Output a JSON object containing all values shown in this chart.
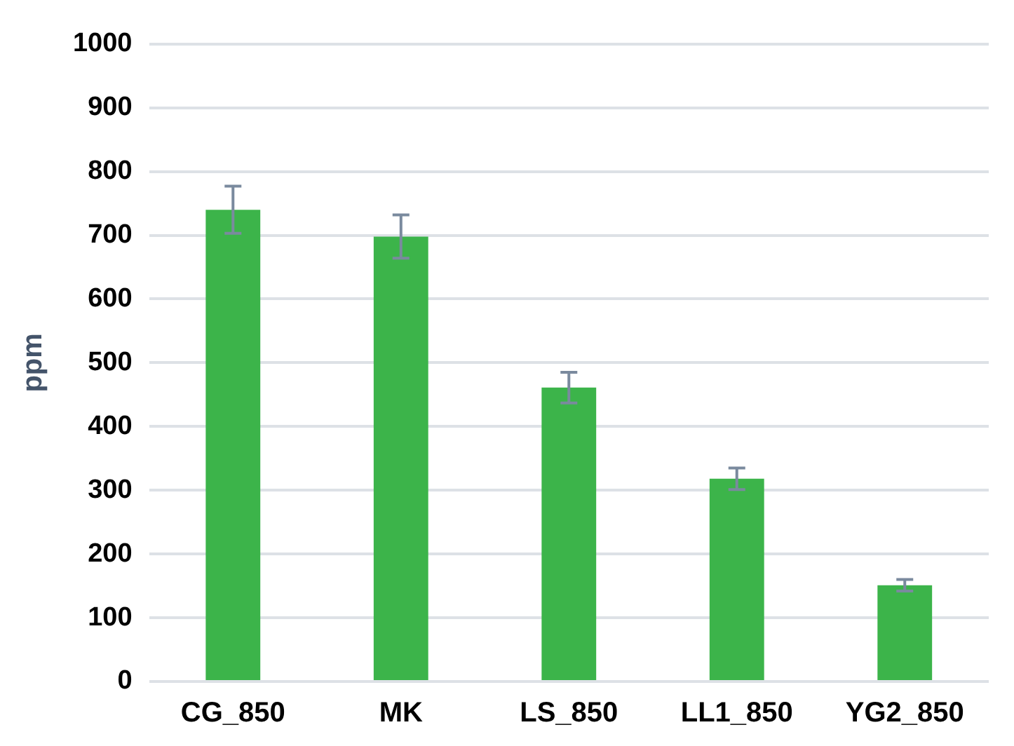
{
  "chart_data": {
    "type": "bar",
    "ylabel": "ppm",
    "categories": [
      "CG_850",
      "MK",
      "LS_850",
      "LL1_850",
      "YG2_850"
    ],
    "values": [
      740,
      698,
      461,
      318,
      151
    ],
    "errors": [
      37,
      34,
      24,
      17,
      9
    ],
    "color": "#3cb44a",
    "ylim": [
      0,
      1000
    ],
    "yticks": [
      0,
      100,
      200,
      300,
      400,
      500,
      600,
      700,
      800,
      900,
      1000
    ],
    "grid": "y"
  }
}
